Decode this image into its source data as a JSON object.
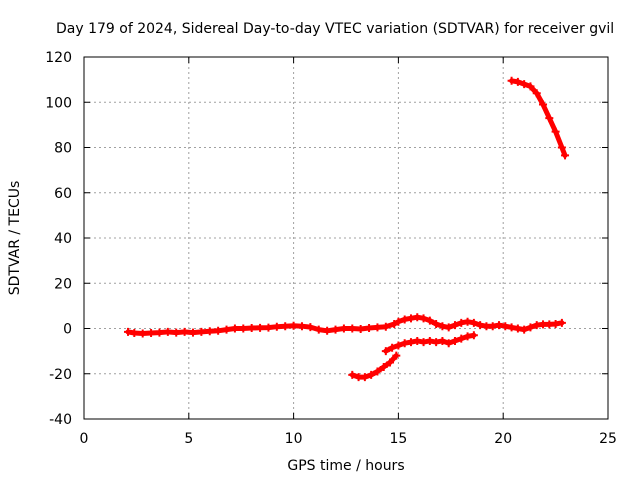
{
  "chart_data": {
    "type": "scatter",
    "title": "Day 179 of 2024, Sidereal Day-to-day VTEC variation (SDTVAR) for receiver gvil",
    "xlabel": "GPS time / hours",
    "ylabel": "SDTVAR / TECUs",
    "xlim": [
      0,
      25
    ],
    "ylim": [
      -40,
      120
    ],
    "xticks": [
      0,
      5,
      10,
      15,
      20,
      25
    ],
    "yticks": [
      -40,
      -20,
      0,
      20,
      40,
      60,
      80,
      100,
      120
    ],
    "grid": true,
    "marker": "plus",
    "marker_color": "#ff0000",
    "series": [
      {
        "points": [
          [
            2.1,
            -1.5
          ],
          [
            2.4,
            -2.0
          ],
          [
            2.8,
            -2.2
          ],
          [
            3.2,
            -2.0
          ],
          [
            3.6,
            -1.8
          ],
          [
            4.0,
            -1.5
          ],
          [
            4.4,
            -1.8
          ],
          [
            4.8,
            -1.5
          ],
          [
            5.2,
            -1.8
          ],
          [
            5.6,
            -1.5
          ],
          [
            6.0,
            -1.2
          ],
          [
            6.4,
            -1.0
          ],
          [
            6.8,
            -0.5
          ],
          [
            7.2,
            0.0
          ],
          [
            7.6,
            0.0
          ],
          [
            8.0,
            0.2
          ],
          [
            8.4,
            0.3
          ],
          [
            8.8,
            0.4
          ],
          [
            9.2,
            0.8
          ],
          [
            9.6,
            1.0
          ],
          [
            10.0,
            1.2
          ],
          [
            10.4,
            1.0
          ],
          [
            10.8,
            0.6
          ],
          [
            11.2,
            -0.5
          ],
          [
            11.6,
            -1.0
          ],
          [
            12.0,
            -0.5
          ],
          [
            12.4,
            0.0
          ],
          [
            12.8,
            0.0
          ],
          [
            13.2,
            -0.2
          ],
          [
            13.6,
            0.2
          ],
          [
            14.0,
            0.5
          ],
          [
            14.4,
            0.8
          ],
          [
            14.8,
            2.0
          ],
          [
            15.0,
            3.0
          ],
          [
            15.3,
            4.0
          ],
          [
            15.6,
            4.5
          ],
          [
            15.9,
            5.0
          ],
          [
            16.2,
            4.5
          ],
          [
            16.5,
            3.5
          ],
          [
            16.8,
            2.0
          ],
          [
            17.1,
            1.0
          ],
          [
            17.4,
            0.5
          ],
          [
            17.7,
            1.5
          ],
          [
            18.0,
            2.5
          ],
          [
            18.3,
            3.0
          ],
          [
            18.6,
            2.5
          ],
          [
            18.9,
            1.5
          ],
          [
            19.2,
            1.0
          ],
          [
            19.5,
            1.0
          ],
          [
            19.8,
            1.5
          ],
          [
            20.1,
            1.0
          ],
          [
            20.4,
            0.5
          ],
          [
            20.7,
            0.0
          ],
          [
            21.0,
            -0.5
          ],
          [
            21.3,
            0.5
          ],
          [
            21.6,
            1.5
          ],
          [
            21.9,
            1.8
          ],
          [
            22.2,
            1.8
          ],
          [
            22.5,
            2.0
          ],
          [
            22.8,
            2.5
          ]
        ]
      },
      {
        "points": [
          [
            12.8,
            -20.5
          ],
          [
            13.1,
            -21.5
          ],
          [
            13.4,
            -21.5
          ],
          [
            13.7,
            -20.5
          ],
          [
            14.0,
            -19.0
          ],
          [
            14.3,
            -17.0
          ],
          [
            14.6,
            -15.0
          ],
          [
            14.9,
            -12.0
          ]
        ]
      },
      {
        "points": [
          [
            14.4,
            -10.0
          ],
          [
            14.7,
            -8.5
          ],
          [
            15.0,
            -7.5
          ],
          [
            15.3,
            -6.5
          ],
          [
            15.6,
            -6.0
          ],
          [
            15.9,
            -5.5
          ],
          [
            16.2,
            -6.0
          ],
          [
            16.5,
            -5.5
          ],
          [
            16.8,
            -6.0
          ],
          [
            17.1,
            -5.5
          ],
          [
            17.4,
            -6.5
          ],
          [
            17.7,
            -5.5
          ],
          [
            18.0,
            -4.5
          ],
          [
            18.3,
            -3.5
          ],
          [
            18.6,
            -3.0
          ]
        ]
      },
      {
        "points": [
          [
            20.4,
            109.5
          ],
          [
            20.7,
            109.0
          ],
          [
            21.0,
            108.0
          ],
          [
            21.3,
            107.0
          ],
          [
            21.6,
            104.0
          ],
          [
            21.9,
            99.0
          ],
          [
            22.2,
            93.0
          ],
          [
            22.5,
            87.0
          ],
          [
            22.8,
            80.0
          ],
          [
            22.95,
            76.5
          ]
        ]
      }
    ]
  }
}
